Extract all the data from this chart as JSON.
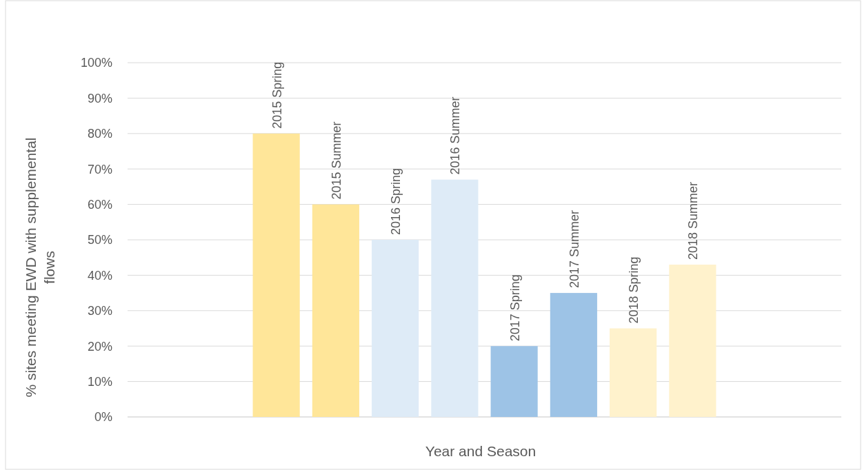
{
  "chart_data": {
    "type": "bar",
    "xlabel": "Year and Season",
    "ylabel": "% sites meeting EWD with supplemental flows",
    "categories": [
      null,
      null,
      "2015 Spring",
      "2015 Summer",
      "2016 Spring",
      "2016 Summer",
      "2017 Spring",
      "2017 Summer",
      "2018 Spring",
      "2018 Summer",
      null,
      null
    ],
    "values": [
      null,
      null,
      80,
      60,
      50,
      67,
      20,
      35,
      25,
      43,
      null,
      null
    ],
    "colors": [
      null,
      null,
      "#ffe699",
      "#ffe699",
      "#deebf7",
      "#deebf7",
      "#9dc3e6",
      "#9dc3e6",
      "#fff2cc",
      "#fff2cc",
      null,
      null
    ],
    "ylim": [
      0,
      100
    ],
    "yticks": [
      {
        "value": 0,
        "label": "0%"
      },
      {
        "value": 10,
        "label": "10%"
      },
      {
        "value": 20,
        "label": "20%"
      },
      {
        "value": 30,
        "label": "30%"
      },
      {
        "value": 40,
        "label": "40%"
      },
      {
        "value": 50,
        "label": "50%"
      },
      {
        "value": 60,
        "label": "60%"
      },
      {
        "value": 70,
        "label": "70%"
      },
      {
        "value": 80,
        "label": "80%"
      },
      {
        "value": 90,
        "label": "90%"
      },
      {
        "value": 100,
        "label": "100%"
      }
    ],
    "grid": "y"
  }
}
